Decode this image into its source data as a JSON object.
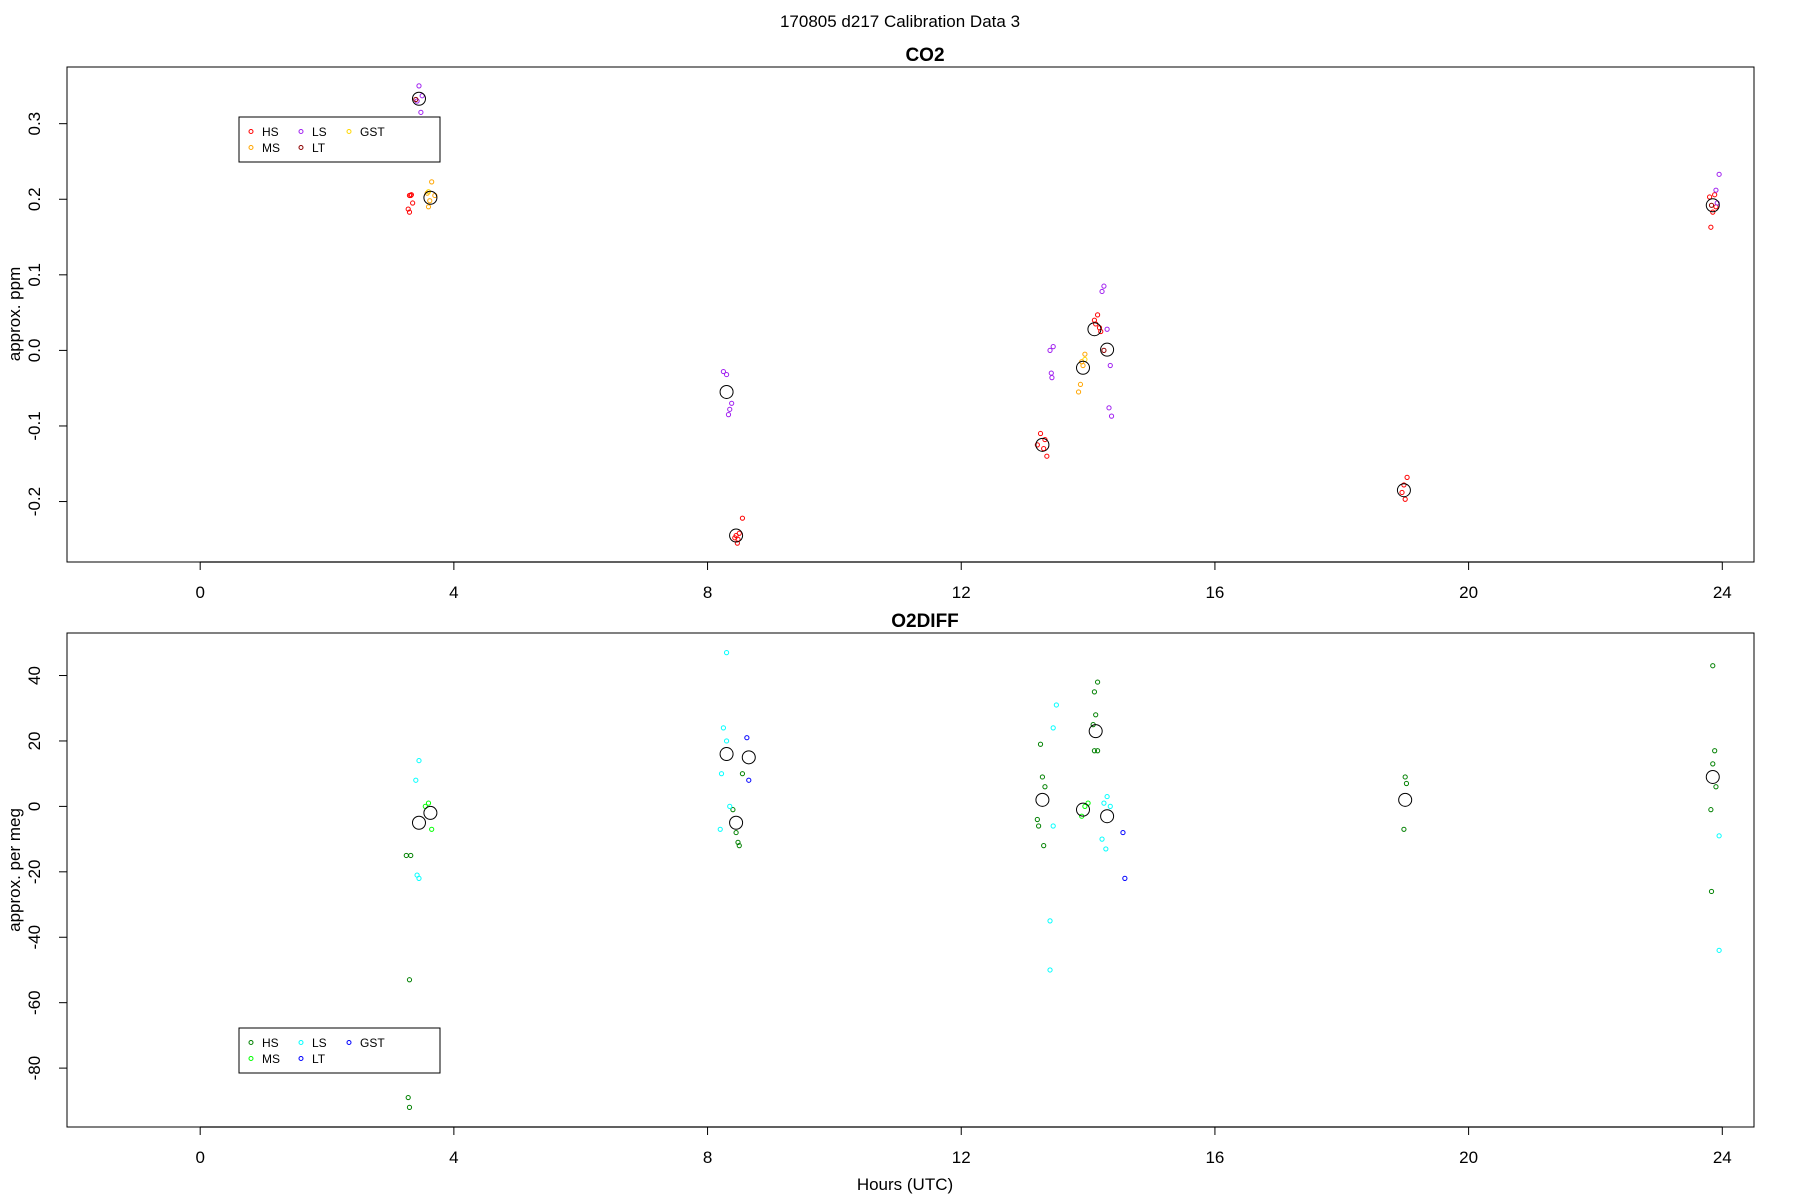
{
  "figure": {
    "title": "170805   d217   Calibration Data 3",
    "xlabel": "Hours (UTC)"
  },
  "chart_data": [
    {
      "type": "scatter",
      "title": "CO2",
      "xlabel": "",
      "ylabel": "approx. ppm",
      "xlim": [
        -2.1,
        24.5
      ],
      "ylim": [
        -0.28,
        0.375
      ],
      "xticks": [
        0,
        4,
        8,
        12,
        16,
        20,
        24
      ],
      "yticks": [
        -0.2,
        -0.1,
        0.0,
        0.1,
        0.2,
        0.3
      ],
      "ytick_labels": [
        "-0.2",
        "-0.1",
        "0.0",
        "0.1",
        "0.2",
        "0.3"
      ],
      "grid": false,
      "legend": {
        "placement": "top-left",
        "entries": [
          {
            "name": "HS",
            "color": "#ff0000"
          },
          {
            "name": "MS",
            "color": "#ffa500"
          },
          {
            "name": "LS",
            "color": "#a020f0"
          },
          {
            "name": "LT",
            "color": "#8b0000"
          },
          {
            "name": "GST",
            "color": "#ffd700"
          }
        ]
      },
      "series": [
        {
          "name": "HS",
          "color": "#ff0000",
          "points": [
            [
              3.3,
              0.205
            ],
            [
              3.32,
              0.205
            ],
            [
              3.28,
              0.187
            ],
            [
              3.3,
              0.183
            ],
            [
              3.35,
              0.195
            ],
            [
              3.33,
              0.206
            ],
            [
              8.45,
              -0.245
            ],
            [
              8.48,
              -0.25
            ],
            [
              8.5,
              -0.242
            ],
            [
              8.55,
              -0.222
            ],
            [
              8.43,
              -0.248
            ],
            [
              8.47,
              -0.255
            ],
            [
              13.25,
              -0.11
            ],
            [
              13.3,
              -0.13
            ],
            [
              13.35,
              -0.14
            ],
            [
              13.32,
              -0.118
            ],
            [
              13.2,
              -0.125
            ],
            [
              14.1,
              0.04
            ],
            [
              14.15,
              0.047
            ],
            [
              14.2,
              0.025
            ],
            [
              14.12,
              0.035
            ],
            [
              14.18,
              0.03
            ],
            [
              18.98,
              -0.178
            ],
            [
              19.03,
              -0.168
            ],
            [
              19.0,
              -0.197
            ],
            [
              18.95,
              -0.188
            ],
            [
              23.8,
              0.203
            ],
            [
              23.82,
              0.163
            ],
            [
              23.85,
              0.183
            ],
            [
              23.88,
              0.206
            ],
            [
              23.9,
              0.19
            ]
          ]
        },
        {
          "name": "MS",
          "color": "#ffa500",
          "points": [
            [
              3.58,
              0.208
            ],
            [
              3.6,
              0.19
            ],
            [
              3.65,
              0.223
            ],
            [
              3.62,
              0.198
            ],
            [
              3.7,
              0.205
            ],
            [
              13.85,
              -0.055
            ],
            [
              13.88,
              -0.045
            ],
            [
              13.9,
              -0.015
            ],
            [
              13.95,
              -0.005
            ],
            [
              13.92,
              -0.02
            ]
          ]
        },
        {
          "name": "LS",
          "color": "#a020f0",
          "points": [
            [
              3.45,
              0.35
            ],
            [
              3.48,
              0.315
            ],
            [
              3.42,
              0.33
            ],
            [
              3.5,
              0.337
            ],
            [
              8.25,
              -0.028
            ],
            [
              8.3,
              -0.032
            ],
            [
              8.35,
              -0.078
            ],
            [
              8.33,
              -0.085
            ],
            [
              8.38,
              -0.07
            ],
            [
              13.4,
              0.0
            ],
            [
              13.45,
              0.005
            ],
            [
              13.42,
              -0.03
            ],
            [
              13.43,
              -0.036
            ],
            [
              14.25,
              0.085
            ],
            [
              14.22,
              0.078
            ],
            [
              14.3,
              0.028
            ],
            [
              14.35,
              -0.02
            ],
            [
              14.33,
              -0.076
            ],
            [
              14.37,
              -0.087
            ],
            [
              23.95,
              0.233
            ],
            [
              23.9,
              0.212
            ],
            [
              23.92,
              0.195
            ]
          ]
        },
        {
          "name": "LT",
          "color": "#8b0000",
          "points": [
            [
              3.4,
              0.332
            ],
            [
              14.25,
              0.0
            ],
            [
              23.83,
              0.192
            ]
          ]
        },
        {
          "name": "GST",
          "color": "#ffd700",
          "points": [
            [
              3.6,
              0.21
            ],
            [
              13.95,
              -0.012
            ]
          ]
        }
      ],
      "means": [
        [
          3.45,
          0.333
        ],
        [
          3.63,
          0.202
        ],
        [
          8.3,
          -0.055
        ],
        [
          8.45,
          -0.245
        ],
        [
          13.28,
          -0.125
        ],
        [
          13.92,
          -0.023
        ],
        [
          14.1,
          0.028
        ],
        [
          14.3,
          0.001
        ],
        [
          18.98,
          -0.185
        ],
        [
          23.85,
          0.192
        ]
      ]
    },
    {
      "type": "scatter",
      "title": "O2DIFF",
      "xlabel": "Hours (UTC)",
      "ylabel": "approx. per meg",
      "xlim": [
        -2.1,
        24.5
      ],
      "ylim": [
        -98,
        53
      ],
      "xticks": [
        0,
        4,
        8,
        12,
        16,
        20,
        24
      ],
      "yticks": [
        -80,
        -60,
        -40,
        -20,
        0,
        20,
        40
      ],
      "ytick_labels": [
        "-80",
        "-60",
        "-40",
        "-20",
        "0",
        "20",
        "40"
      ],
      "grid": false,
      "legend": {
        "placement": "bottom-left",
        "entries": [
          {
            "name": "HS",
            "color": "#008000"
          },
          {
            "name": "MS",
            "color": "#00ff00"
          },
          {
            "name": "LS",
            "color": "#00ffff"
          },
          {
            "name": "LT",
            "color": "#0000ff"
          },
          {
            "name": "GST",
            "color": "#0000ff"
          }
        ]
      },
      "series": [
        {
          "name": "HS",
          "color": "#008000",
          "points": [
            [
              3.25,
              -15
            ],
            [
              3.32,
              -15
            ],
            [
              3.3,
              -53
            ],
            [
              3.28,
              -89
            ],
            [
              3.3,
              -92
            ],
            [
              8.4,
              -1
            ],
            [
              8.45,
              -8
            ],
            [
              8.48,
              -11
            ],
            [
              8.5,
              -12
            ],
            [
              8.55,
              10
            ],
            [
              13.25,
              19
            ],
            [
              13.28,
              9
            ],
            [
              13.32,
              6
            ],
            [
              13.2,
              -4
            ],
            [
              13.22,
              -6
            ],
            [
              13.3,
              -12
            ],
            [
              14.1,
              35
            ],
            [
              14.15,
              38
            ],
            [
              14.12,
              28
            ],
            [
              14.08,
              25
            ],
            [
              14.1,
              17
            ],
            [
              14.15,
              17
            ],
            [
              19.0,
              9
            ],
            [
              19.02,
              7
            ],
            [
              18.98,
              -7
            ],
            [
              23.85,
              43
            ],
            [
              23.88,
              17
            ],
            [
              23.85,
              13
            ],
            [
              23.9,
              6
            ],
            [
              23.82,
              -1
            ],
            [
              23.83,
              -26
            ]
          ]
        },
        {
          "name": "MS",
          "color": "#00ff00",
          "points": [
            [
              3.55,
              0
            ],
            [
              3.6,
              1
            ],
            [
              3.65,
              -7
            ],
            [
              13.9,
              -3
            ],
            [
              13.95,
              0
            ],
            [
              14.0,
              1
            ]
          ]
        },
        {
          "name": "LS",
          "color": "#00ffff",
          "points": [
            [
              3.45,
              14
            ],
            [
              3.4,
              8
            ],
            [
              3.42,
              -21
            ],
            [
              3.45,
              -22
            ],
            [
              8.3,
              47
            ],
            [
              8.25,
              24
            ],
            [
              8.3,
              20
            ],
            [
              8.22,
              10
            ],
            [
              8.35,
              0
            ],
            [
              8.2,
              -7
            ],
            [
              13.5,
              31
            ],
            [
              13.45,
              24
            ],
            [
              13.45,
              -6
            ],
            [
              13.4,
              -35
            ],
            [
              13.4,
              -50
            ],
            [
              14.3,
              3
            ],
            [
              14.25,
              1
            ],
            [
              14.22,
              -10
            ],
            [
              14.28,
              -13
            ],
            [
              14.35,
              0
            ],
            [
              23.95,
              -9
            ],
            [
              23.95,
              -44
            ]
          ]
        },
        {
          "name": "LT",
          "color": "#0000ff",
          "points": [
            [
              8.62,
              21
            ],
            [
              8.65,
              8
            ],
            [
              14.55,
              -8
            ],
            [
              14.58,
              -22
            ]
          ]
        },
        {
          "name": "GST",
          "color": "#0000ff",
          "points": []
        }
      ],
      "means": [
        [
          3.45,
          -5
        ],
        [
          3.63,
          -2
        ],
        [
          8.3,
          16
        ],
        [
          8.45,
          -5
        ],
        [
          8.65,
          15
        ],
        [
          13.28,
          2
        ],
        [
          13.92,
          -1
        ],
        [
          14.12,
          23
        ],
        [
          14.3,
          -3
        ],
        [
          19.0,
          2
        ],
        [
          23.85,
          9
        ]
      ]
    }
  ]
}
